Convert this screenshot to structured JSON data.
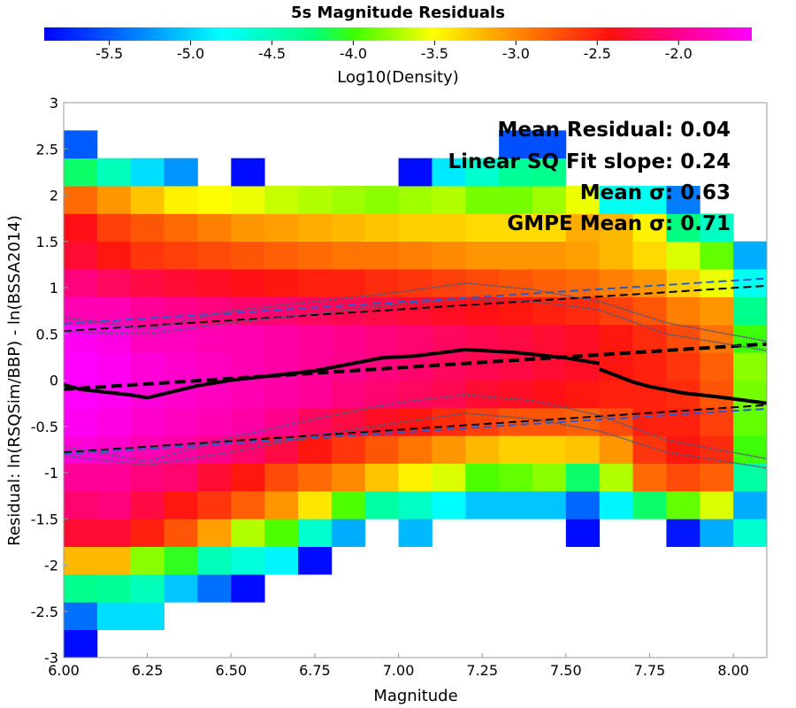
{
  "chart_data": {
    "type": "heatmap",
    "title": "5s Magnitude Residuals",
    "xlabel": "Magnitude",
    "ylabel": "Residual: ln(RSQSim/BBP) - ln(BSSA2014)",
    "xlim": [
      6.0,
      8.1
    ],
    "ylim": [
      -3,
      3
    ],
    "x_ticks": [
      "6.00",
      "6.25",
      "6.50",
      "6.75",
      "7.00",
      "7.25",
      "7.50",
      "7.75",
      "8.00"
    ],
    "x_tick_values": [
      6.0,
      6.25,
      6.5,
      6.75,
      7.0,
      7.25,
      7.5,
      7.75,
      8.0
    ],
    "y_ticks": [
      "-3",
      "-2.5",
      "-2",
      "-1.5",
      "-1",
      "-0.5",
      "0",
      "0.5",
      "1",
      "1.5",
      "2",
      "2.5",
      "3"
    ],
    "y_tick_values": [
      -3,
      -2.5,
      -2,
      -1.5,
      -1,
      -0.5,
      0,
      0.5,
      1,
      1.5,
      2,
      2.5,
      3
    ],
    "colorbar": {
      "label": "Log10(Density)",
      "range": [
        -5.9,
        -1.55
      ],
      "ticks": [
        "-5.5",
        "-5.0",
        "-4.5",
        "-4.0",
        "-3.5",
        "-3.0",
        "-2.5",
        "-2.0"
      ],
      "tick_values": [
        -5.5,
        -5.0,
        -4.5,
        -4.0,
        -3.5,
        -3.0,
        -2.5,
        -2.0
      ]
    },
    "annotations": [
      "Mean Residual: 0.04",
      "Linear SQ Fit slope: 0.24",
      "Mean σ: 0.63",
      "GMPE Mean σ: 0.71"
    ],
    "grid": {
      "x_start": 6.0,
      "x_step": 0.1,
      "y_start": -3.0,
      "y_step": 0.3,
      "row_bottoms": [
        -3.0,
        -2.7,
        -2.4,
        -2.1,
        -1.8,
        -1.5,
        -1.2,
        -0.9,
        -0.6,
        -0.3,
        0.0,
        0.3,
        0.6,
        0.9,
        1.2,
        1.5,
        1.8,
        2.1,
        2.4
      ],
      "rows": [
        [
          -5.85,
          null,
          null,
          null,
          null,
          null,
          null,
          null,
          null,
          null,
          null,
          null,
          null,
          null,
          null,
          null,
          null,
          null,
          null,
          null,
          null
        ],
        [
          -5.4,
          -4.95,
          -4.95,
          null,
          null,
          null,
          null,
          null,
          null,
          null,
          null,
          null,
          null,
          null,
          null,
          null,
          null,
          null,
          null,
          null,
          null
        ],
        [
          -4.3,
          -4.35,
          -4.5,
          -5.05,
          -5.4,
          -5.85,
          null,
          null,
          null,
          null,
          null,
          null,
          null,
          null,
          null,
          null,
          null,
          null,
          null,
          null,
          null
        ],
        [
          -3.2,
          -3.2,
          -3.8,
          -4.05,
          -4.5,
          -4.65,
          -4.85,
          -5.85,
          null,
          null,
          null,
          null,
          null,
          null,
          null,
          null,
          null,
          null,
          null,
          null,
          null
        ],
        [
          -2.3,
          -2.3,
          -2.5,
          -2.75,
          -3.1,
          -3.7,
          -3.95,
          -4.6,
          -5.15,
          null,
          -5.1,
          null,
          null,
          null,
          null,
          -5.85,
          null,
          null,
          -5.8,
          -5.15,
          -4.6
        ],
        [
          -2.1,
          -2.05,
          -2.25,
          -2.45,
          -2.6,
          -2.8,
          -3.05,
          -3.4,
          -3.95,
          -4.4,
          -4.55,
          -4.8,
          -5.05,
          -5.05,
          -5.05,
          -5.45,
          -4.85,
          -4.2,
          -3.9,
          -3.6,
          -5.15
        ],
        [
          -1.95,
          -1.95,
          -2.05,
          -2.1,
          -2.3,
          -2.45,
          -2.7,
          -2.85,
          -3.0,
          -3.25,
          -3.45,
          -3.6,
          -3.95,
          -3.9,
          -3.8,
          -4.2,
          -3.7,
          -2.85,
          -2.7,
          -2.8,
          -4.4
        ],
        [
          -1.7,
          -1.75,
          -1.85,
          -1.9,
          -2.0,
          -2.1,
          -2.25,
          -2.45,
          -2.6,
          -2.75,
          -2.9,
          -3.05,
          -3.2,
          -3.3,
          -3.3,
          -3.25,
          -3.05,
          -2.6,
          -2.45,
          -2.55,
          -4.0
        ],
        [
          -1.6,
          -1.65,
          -1.75,
          -1.8,
          -1.85,
          -1.9,
          -2.0,
          -2.15,
          -2.25,
          -2.35,
          -2.45,
          -2.55,
          -2.65,
          -2.75,
          -2.75,
          -2.8,
          -2.7,
          -2.5,
          -2.5,
          -2.65,
          -3.9
        ],
        [
          -1.55,
          -1.6,
          -1.7,
          -1.75,
          -1.8,
          -1.85,
          -1.9,
          -1.95,
          -2.05,
          -2.1,
          -2.15,
          -2.2,
          -2.3,
          -2.35,
          -2.4,
          -2.45,
          -2.5,
          -2.5,
          -2.55,
          -2.75,
          -3.85
        ],
        [
          -1.55,
          -1.6,
          -1.7,
          -1.75,
          -1.8,
          -1.85,
          -1.9,
          -1.95,
          -2.0,
          -2.05,
          -2.1,
          -2.15,
          -2.2,
          -2.25,
          -2.3,
          -2.35,
          -2.45,
          -2.5,
          -2.6,
          -2.8,
          -3.8
        ],
        [
          -1.6,
          -1.65,
          -1.8,
          -1.8,
          -1.85,
          -1.85,
          -1.9,
          -1.95,
          -2.0,
          -2.05,
          -2.1,
          -2.15,
          -2.2,
          -2.25,
          -2.3,
          -2.35,
          -2.45,
          -2.55,
          -2.7,
          -2.9,
          -4.0
        ],
        [
          -1.85,
          -1.85,
          -1.95,
          -2.0,
          -2.05,
          -2.1,
          -2.1,
          -2.15,
          -2.2,
          -2.25,
          -2.3,
          -2.35,
          -2.4,
          -2.45,
          -2.5,
          -2.55,
          -2.65,
          -2.75,
          -2.95,
          -3.05,
          -4.3
        ],
        [
          -2.05,
          -2.15,
          -2.25,
          -2.3,
          -2.35,
          -2.4,
          -2.45,
          -2.5,
          -2.5,
          -2.55,
          -2.6,
          -2.65,
          -2.7,
          -2.75,
          -2.8,
          -2.85,
          -2.95,
          -3.05,
          -3.3,
          -3.55,
          -4.75
        ],
        [
          -2.3,
          -2.45,
          -2.6,
          -2.65,
          -2.7,
          -2.75,
          -2.8,
          -2.85,
          -2.9,
          -2.9,
          -2.95,
          -3.0,
          -3.05,
          -3.05,
          -3.05,
          -3.1,
          -3.2,
          -3.35,
          -3.6,
          -3.9,
          -5.15
        ],
        [
          -2.4,
          -2.65,
          -2.75,
          -2.85,
          -2.95,
          -3.05,
          -3.1,
          -3.15,
          -3.2,
          -3.25,
          -3.3,
          -3.3,
          -3.35,
          -3.35,
          -3.35,
          -3.15,
          -3.2,
          -3.45,
          -4.25,
          -4.55,
          null
        ],
        [
          -2.85,
          -3.05,
          -3.25,
          -3.45,
          -3.5,
          -3.55,
          -3.65,
          -3.7,
          -3.75,
          -3.8,
          -3.75,
          -3.7,
          -3.85,
          -3.85,
          -3.75,
          -3.55,
          -4.75,
          -4.75,
          -5.35,
          null,
          null
        ],
        [
          -4.2,
          -4.5,
          -4.95,
          -5.25,
          null,
          -5.85,
          null,
          null,
          null,
          null,
          -5.85,
          -4.9,
          -4.6,
          -4.35,
          -4.3,
          null,
          null,
          null,
          null,
          null,
          null
        ],
        [
          -5.5,
          null,
          null,
          null,
          null,
          null,
          null,
          null,
          null,
          null,
          null,
          null,
          null,
          -5.55,
          -5.55,
          null,
          null,
          null,
          null,
          null,
          null
        ]
      ]
    },
    "series": [
      {
        "style": "mean",
        "segments": [
          {
            "x": [
              6.0,
              6.05,
              6.1,
              6.15,
              6.2,
              6.25
            ],
            "y": [
              -0.05,
              -0.1,
              -0.12,
              -0.14,
              -0.16,
              -0.19
            ]
          },
          {
            "x": [
              6.25,
              6.4,
              6.5,
              6.65,
              6.75,
              6.95,
              7.05,
              7.2,
              7.35,
              7.5,
              7.6
            ],
            "y": [
              -0.19,
              -0.06,
              0.0,
              0.06,
              0.1,
              0.24,
              0.26,
              0.33,
              0.3,
              0.24,
              0.18
            ]
          },
          {
            "x": [
              7.6,
              7.7,
              7.75,
              7.85,
              7.95,
              8.1
            ],
            "y": [
              0.12,
              -0.02,
              -0.07,
              -0.14,
              -0.18,
              -0.25
            ]
          }
        ]
      },
      {
        "style": "fit",
        "x": [
          6.0,
          8.1
        ],
        "y": [
          -0.1,
          0.39
        ]
      },
      {
        "style": "fit-sigma",
        "x": [
          6.0,
          8.1
        ],
        "y": [
          0.53,
          1.02
        ]
      },
      {
        "style": "fit-sigma",
        "x": [
          6.0,
          8.1
        ],
        "y": [
          -0.78,
          -0.27
        ]
      },
      {
        "style": "gmpe-sigma",
        "x": [
          6.0,
          8.1
        ],
        "y": [
          0.61,
          1.1
        ]
      },
      {
        "style": "gmpe-sigma",
        "x": [
          6.0,
          8.1
        ],
        "y": [
          -0.8,
          -0.31
        ]
      },
      {
        "style": "band",
        "x": [
          6.0,
          6.25,
          6.5,
          6.75,
          7.0,
          7.2,
          7.4,
          7.6,
          7.8,
          8.1
        ],
        "y": [
          0.68,
          0.55,
          0.75,
          0.85,
          0.95,
          1.05,
          0.98,
          0.85,
          0.62,
          0.42
        ]
      },
      {
        "style": "band",
        "x": [
          6.0,
          6.25,
          6.5,
          6.75,
          7.0,
          7.2,
          7.4,
          7.6,
          7.8,
          8.1
        ],
        "y": [
          0.52,
          0.5,
          0.62,
          0.72,
          0.82,
          0.88,
          0.85,
          0.76,
          0.5,
          0.32
        ]
      },
      {
        "style": "band",
        "x": [
          6.0,
          6.25,
          6.5,
          6.75,
          7.0,
          7.2,
          7.4,
          7.6,
          7.8,
          8.1
        ],
        "y": [
          -0.72,
          -0.88,
          -0.62,
          -0.42,
          -0.24,
          -0.16,
          -0.22,
          -0.38,
          -0.65,
          -0.85
        ]
      },
      {
        "style": "band",
        "x": [
          6.0,
          6.25,
          6.5,
          6.75,
          7.0,
          7.2,
          7.4,
          7.6,
          7.8,
          8.1
        ],
        "y": [
          -0.82,
          -0.92,
          -0.78,
          -0.6,
          -0.46,
          -0.36,
          -0.42,
          -0.55,
          -0.78,
          -0.95
        ]
      }
    ]
  }
}
